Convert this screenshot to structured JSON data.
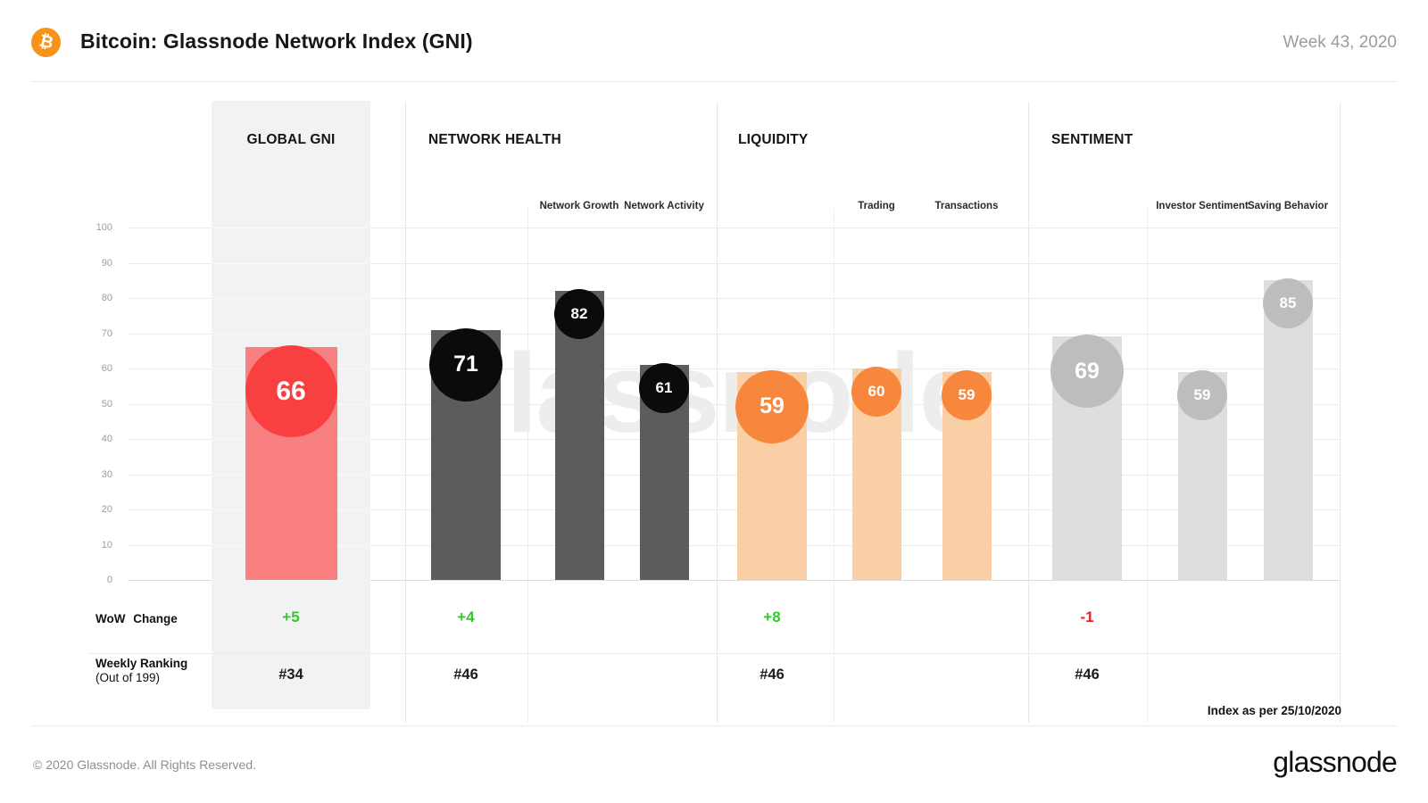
{
  "header": {
    "title": "Bitcoin: Glassnode Network Index (GNI)",
    "week_label": "Week 43, 2020",
    "bitcoin_icon": "₿"
  },
  "axis": {
    "ticks": [
      100,
      90,
      80,
      70,
      60,
      50,
      40,
      30,
      20,
      10,
      0
    ]
  },
  "watermark": "glassnode",
  "rows": {
    "wow_label": "WoW Change",
    "ranking_label": "Weekly Ranking",
    "ranking_sublabel": "(Out of 199)",
    "index_note": "Index as per 25/10/2020"
  },
  "footer": {
    "copyright": "© 2020 Glassnode. All Rights Reserved.",
    "logo_text": "glassnode"
  },
  "colors": {
    "bitcoin_orange": "#f7931a",
    "positive_green": "#2fcb25",
    "negative_red": "#ee1b1b",
    "panel_gray": "#f2f2f2"
  },
  "chart_data": {
    "type": "bar",
    "title": "Bitcoin: Glassnode Network Index (GNI)",
    "subtitle": "Week 43, 2020",
    "ylim": [
      0,
      100
    ],
    "grid": true,
    "sections": [
      {
        "name": "GLOBAL GNI",
        "bar_color": "#f98080",
        "circle_color": "#f94040",
        "main": {
          "label": "Global GNI",
          "value": 66,
          "wow_change": "+5",
          "weekly_ranking": "#34"
        },
        "subs": []
      },
      {
        "name": "NETWORK HEALTH",
        "bar_color": "#5c5c5c",
        "circle_color": "#0b0b0b",
        "main": {
          "label": "Network Health",
          "value": 71,
          "wow_change": "+4",
          "weekly_ranking": "#46"
        },
        "subs": [
          {
            "label": "Network Growth",
            "value": 82
          },
          {
            "label": "Network Activity",
            "value": 61
          }
        ]
      },
      {
        "name": "LIQUIDITY",
        "bar_color": "#fbcfa6",
        "circle_color": "#f6873c",
        "main": {
          "label": "Liquidity",
          "value": 59,
          "wow_change": "+8",
          "weekly_ranking": "#46"
        },
        "subs": [
          {
            "label": "Trading",
            "value": 60
          },
          {
            "label": "Transactions",
            "value": 59
          }
        ]
      },
      {
        "name": "SENTIMENT",
        "bar_color": "#dedede",
        "circle_color": "#bdbdbd",
        "main": {
          "label": "Sentiment",
          "value": 69,
          "wow_change": "-1",
          "weekly_ranking": "#46"
        },
        "subs": [
          {
            "label": "Investor Sentiment",
            "value": 59
          },
          {
            "label": "Saving Behavior",
            "value": 85
          }
        ]
      }
    ]
  }
}
